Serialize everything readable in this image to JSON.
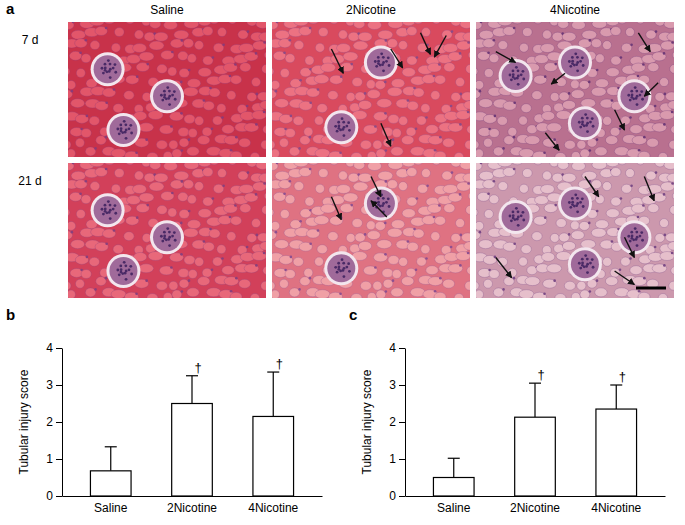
{
  "micrographs": {
    "panel": "a",
    "columns": [
      "Saline",
      "2Nicotine",
      "4Nicotine"
    ],
    "rows": [
      "7 d",
      "21 d"
    ]
  },
  "chart_data": [
    {
      "type": "bar",
      "panel": "b",
      "categories": [
        "Saline",
        "2Nicotine",
        "4Nicotine"
      ],
      "values": [
        0.68,
        2.5,
        2.15
      ],
      "errors": [
        0.65,
        0.75,
        1.2
      ],
      "color": "#ffffff",
      "y_label": "Tubular injury score",
      "ylim": [
        0,
        4
      ],
      "yticks": [
        0,
        1,
        2,
        3,
        4
      ],
      "annotations": [
        {
          "category": "2Nicotine",
          "text": "†"
        },
        {
          "category": "4Nicotine",
          "text": "†"
        }
      ]
    },
    {
      "type": "bar",
      "panel": "c",
      "categories": [
        "Saline",
        "2Nicotine",
        "4Nicotine"
      ],
      "values": [
        0.5,
        2.13,
        2.35
      ],
      "errors": [
        0.52,
        0.92,
        0.65
      ],
      "color": "#ffffff",
      "y_label": "Tubular injury score",
      "ylim": [
        0,
        4
      ],
      "yticks": [
        0,
        1,
        2,
        3,
        4
      ],
      "annotations": [
        {
          "category": "2Nicotine",
          "text": "†"
        },
        {
          "category": "4Nicotine",
          "text": "†"
        }
      ]
    }
  ]
}
